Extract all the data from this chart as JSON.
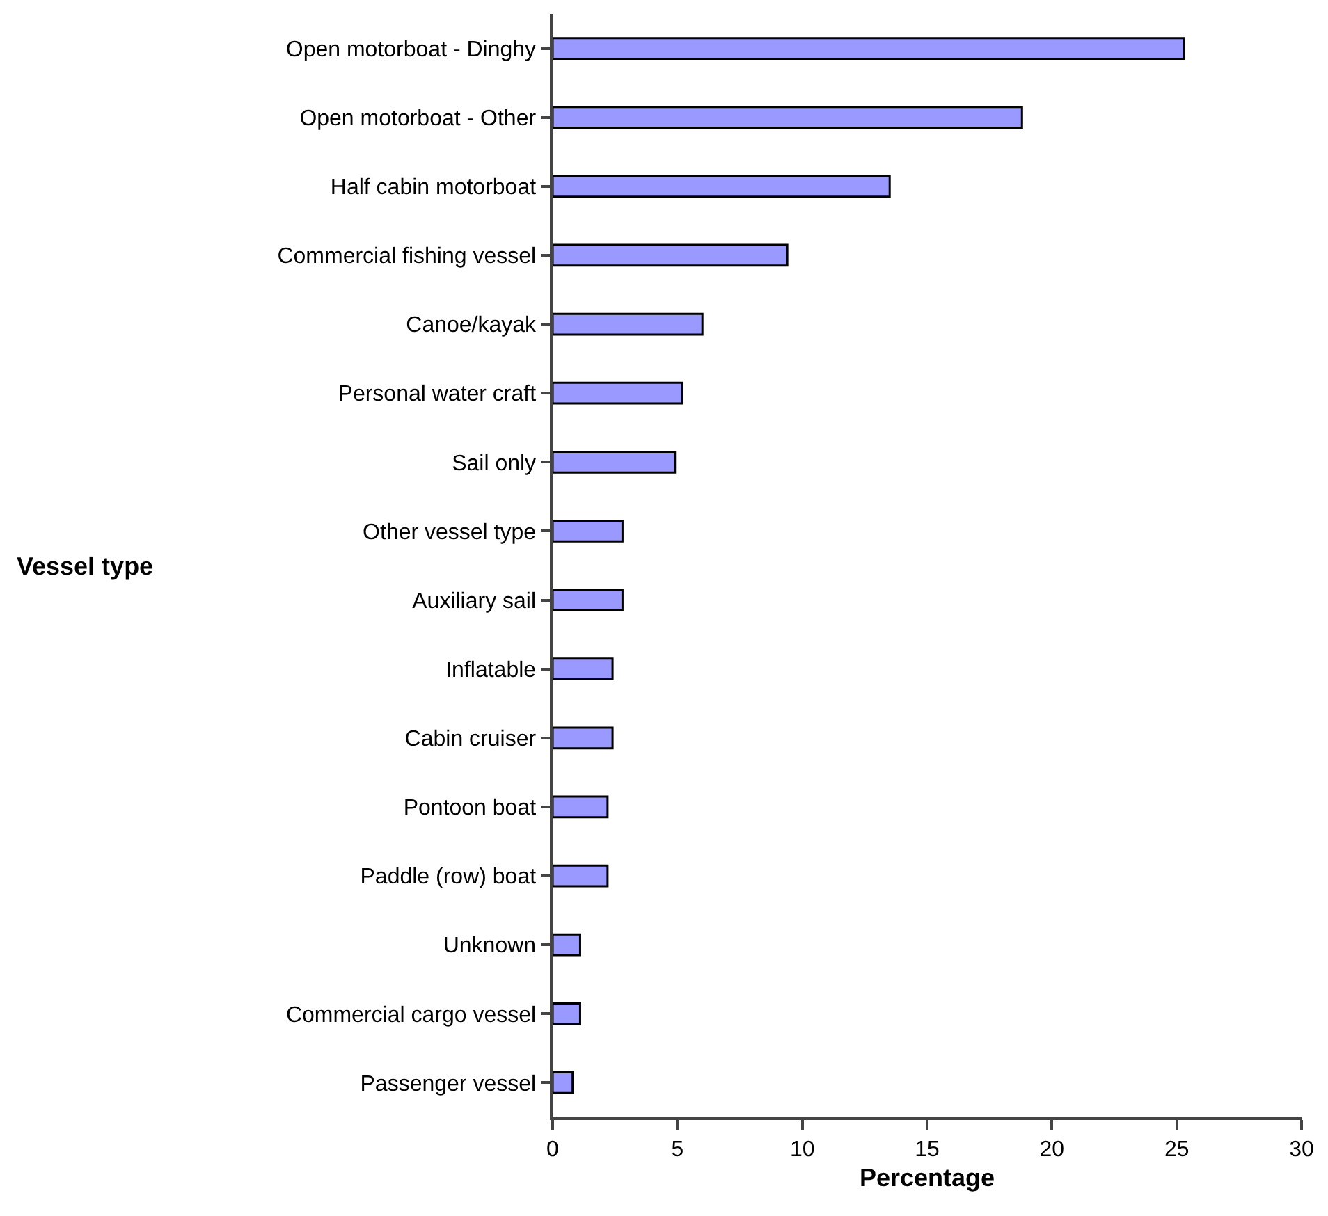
{
  "chart_data": {
    "type": "bar",
    "orientation": "horizontal",
    "xlabel": "Percentage",
    "ylabel": "Vessel type",
    "categories": [
      "Open motorboat - Dinghy",
      "Open motorboat - Other",
      "Half cabin motorboat",
      "Commercial fishing vessel",
      "Canoe/kayak",
      "Personal water craft",
      "Sail only",
      "Other vessel type",
      "Auxiliary sail",
      "Inflatable",
      "Cabin cruiser",
      "Pontoon boat",
      "Paddle (row) boat",
      "Unknown",
      "Commercial cargo vessel",
      "Passenger vessel"
    ],
    "values": [
      25.3,
      18.8,
      13.5,
      9.4,
      6.0,
      5.2,
      4.9,
      2.8,
      2.8,
      2.4,
      2.4,
      2.2,
      2.2,
      1.1,
      1.1,
      0.8
    ],
    "color": "#9999ff",
    "xlim": [
      0,
      30
    ],
    "xticks": [
      0,
      5,
      10,
      15,
      20,
      25,
      30
    ],
    "legend": false
  }
}
